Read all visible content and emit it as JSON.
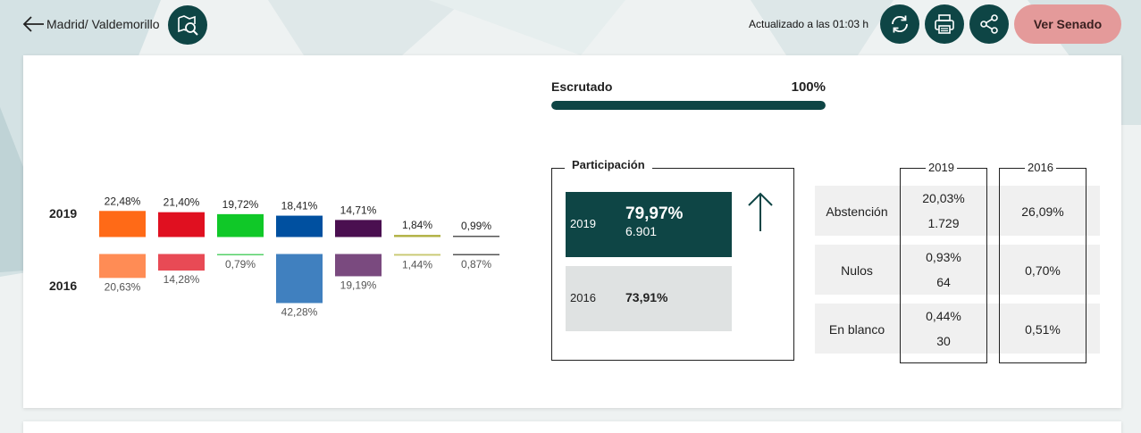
{
  "header": {
    "back_label": "Madrid/ Valdemorillo",
    "updated": "Actualizado a las 01:03 h",
    "senado_label": "Ver Senado",
    "icons": [
      "arrow-left-icon",
      "search-map-icon",
      "refresh-icon",
      "print-icon",
      "share-icon"
    ]
  },
  "colors": {
    "accent": "#0e4545",
    "senado": "#e49a9a"
  },
  "chart_data": {
    "type": "bar",
    "title": "",
    "series": [
      {
        "name": "2019",
        "values": [
          22.48,
          21.4,
          19.72,
          18.41,
          14.71,
          1.84,
          0.99
        ],
        "labels": [
          "22,48%",
          "21,40%",
          "19,72%",
          "18,41%",
          "14,71%",
          "1,84%",
          "0,99%"
        ],
        "colors": [
          "#ff6a17",
          "#e01020",
          "#10c828",
          "#0050a0",
          "#4a0f50",
          "#b0b040",
          "#555555"
        ]
      },
      {
        "name": "2016",
        "values": [
          20.63,
          14.28,
          0.79,
          42.28,
          19.19,
          1.44,
          0.87
        ],
        "labels": [
          "20,63%",
          "14,28%",
          "0,79%",
          "42,28%",
          "19,19%",
          "1,44%",
          "0,87%"
        ],
        "colors": [
          "#ff8c55",
          "#e84a55",
          "#55d068",
          "#4080bf",
          "#7a4a7f",
          "#c8c870",
          "#555555"
        ]
      }
    ]
  },
  "escrutado": {
    "label": "Escrutado",
    "value": "100%",
    "fraction": 1.0
  },
  "participacion": {
    "title": "Participación",
    "y2019": {
      "year": "2019",
      "pct": "79,97%",
      "votes": "6.901"
    },
    "y2016": {
      "year": "2016",
      "pct": "73,91%"
    }
  },
  "stats": {
    "col_2019": "2019",
    "col_2016": "2016",
    "rows": [
      {
        "label": "Abstención",
        "pct_2019": "20,03%",
        "count_2019": "1.729",
        "pct_2016": "26,09%"
      },
      {
        "label": "Nulos",
        "pct_2019": "0,93%",
        "count_2019": "64",
        "pct_2016": "0,70%"
      },
      {
        "label": "En blanco",
        "pct_2019": "0,44%",
        "count_2019": "30",
        "pct_2016": "0,51%"
      }
    ]
  }
}
